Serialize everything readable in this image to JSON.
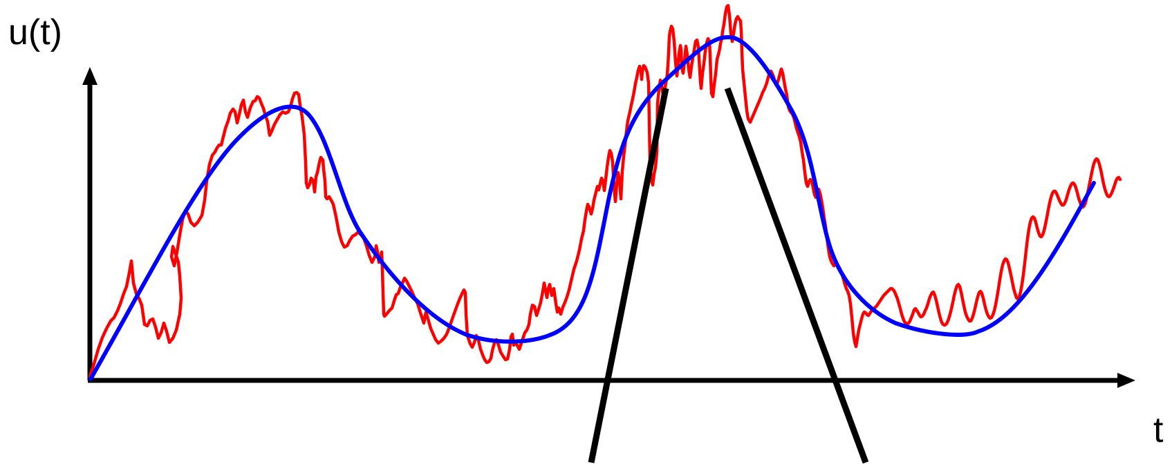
{
  "labels": {
    "y_axis": "u(t)",
    "x_axis": "t"
  },
  "colors": {
    "axes": "#000000",
    "noisy_signal": "#ff0000",
    "smooth_signal": "#0000ff",
    "tangent_lines": "#000000",
    "background": "#ffffff"
  }
}
